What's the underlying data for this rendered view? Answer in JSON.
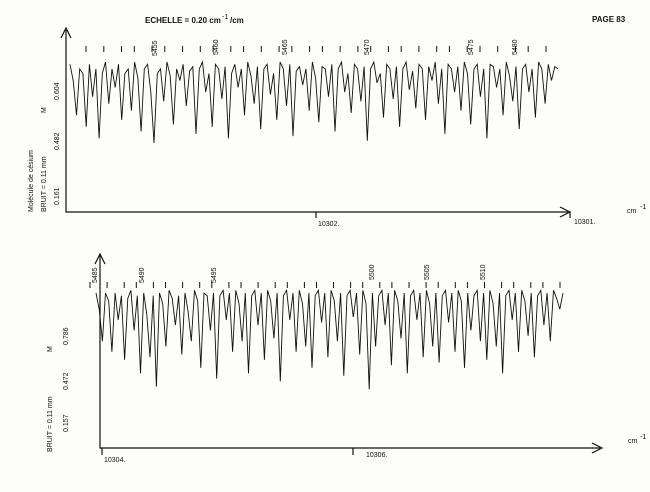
{
  "header": {
    "scale_label": "ECHELLE = 0.20 cm",
    "scale_exp": "-1",
    "scale_unit": "/cm",
    "page_label": "PAGE 83"
  },
  "colors": {
    "ink": "#111111",
    "paper": "#fdfdfb"
  },
  "chart_data": [
    {
      "type": "line",
      "xunit": "cm",
      "xunit_exp": "-1",
      "molecule_label": "Molécule de césium",
      "noise_label": "BRUIT = 0.11 mm",
      "scale_marker": "M",
      "yticks": [
        "0.604",
        "0.482",
        "0.161"
      ],
      "xticks": [
        "10302.",
        "10301."
      ],
      "line_numbers": [
        "5455",
        "5460",
        "5465",
        "5470",
        "5475",
        "5480"
      ],
      "marker_count": 30,
      "series": [
        {
          "values": [
            0.62,
            0.55,
            0.4,
            0.6,
            0.58,
            0.35,
            0.62,
            0.48,
            0.6,
            0.3,
            0.58,
            0.63,
            0.45,
            0.6,
            0.52,
            0.62,
            0.38,
            0.58,
            0.6,
            0.42,
            0.63,
            0.56,
            0.33,
            0.6,
            0.62,
            0.5,
            0.28,
            0.58,
            0.6,
            0.46,
            0.63,
            0.57,
            0.36,
            0.6,
            0.55,
            0.62,
            0.44,
            0.59,
            0.61,
            0.32,
            0.6,
            0.63,
            0.5,
            0.58,
            0.35,
            0.62,
            0.6,
            0.47,
            0.61,
            0.3,
            0.58,
            0.62,
            0.52,
            0.6,
            0.4,
            0.63,
            0.57,
            0.45,
            0.61,
            0.34,
            0.6,
            0.62,
            0.49,
            0.58,
            0.38,
            0.63,
            0.6,
            0.44,
            0.62,
            0.31,
            0.59,
            0.61,
            0.53,
            0.6,
            0.42,
            0.63,
            0.56,
            0.37,
            0.61,
            0.6,
            0.48,
            0.62,
            0.33,
            0.6,
            0.63,
            0.5,
            0.58,
            0.41,
            0.62,
            0.6,
            0.46,
            0.61,
            0.29,
            0.6,
            0.63,
            0.54,
            0.58,
            0.39,
            0.62,
            0.6,
            0.47,
            0.61,
            0.35,
            0.6,
            0.63,
            0.51,
            0.59,
            0.43,
            0.62,
            0.6,
            0.38,
            0.61,
            0.55,
            0.63,
            0.45,
            0.6,
            0.32,
            0.62,
            0.6,
            0.5,
            0.61,
            0.42,
            0.63,
            0.58,
            0.36,
            0.6,
            0.62,
            0.48,
            0.6,
            0.3,
            0.62,
            0.61,
            0.52,
            0.6,
            0.4,
            0.63,
            0.57,
            0.46,
            0.61,
            0.34,
            0.6,
            0.62,
            0.5,
            0.6,
            0.39,
            0.63,
            0.6,
            0.45,
            0.62,
            0.55,
            0.61,
            0.6
          ]
        }
      ]
    },
    {
      "type": "line",
      "xunit": "cm",
      "xunit_exp": "-1",
      "noise_label": "BRUIT = 0.11 mm",
      "scale_marker": "M",
      "yticks": [
        "0.786",
        "0.472",
        "0.157"
      ],
      "xticks": [
        "10304.",
        "10306."
      ],
      "line_numbers": [
        "5485",
        "5490",
        "5495",
        "5500",
        "5505",
        "5510"
      ],
      "marker_count": 32,
      "series": [
        {
          "values": [
            0.8,
            0.74,
            0.62,
            0.8,
            0.77,
            0.58,
            0.8,
            0.7,
            0.79,
            0.55,
            0.78,
            0.81,
            0.66,
            0.79,
            0.5,
            0.8,
            0.72,
            0.56,
            0.79,
            0.45,
            0.8,
            0.76,
            0.6,
            0.81,
            0.78,
            0.68,
            0.79,
            0.57,
            0.8,
            0.73,
            0.62,
            0.81,
            0.77,
            0.52,
            0.8,
            0.79,
            0.66,
            0.8,
            0.48,
            0.79,
            0.81,
            0.7,
            0.8,
            0.58,
            0.81,
            0.76,
            0.62,
            0.8,
            0.5,
            0.79,
            0.81,
            0.68,
            0.8,
            0.55,
            0.81,
            0.77,
            0.63,
            0.8,
            0.47,
            0.79,
            0.81,
            0.7,
            0.8,
            0.58,
            0.81,
            0.76,
            0.6,
            0.8,
            0.52,
            0.79,
            0.81,
            0.69,
            0.8,
            0.56,
            0.81,
            0.77,
            0.62,
            0.8,
            0.49,
            0.79,
            0.81,
            0.71,
            0.8,
            0.57,
            0.81,
            0.76,
            0.44,
            0.8,
            0.6,
            0.79,
            0.81,
            0.68,
            0.8,
            0.53,
            0.81,
            0.77,
            0.63,
            0.8,
            0.5,
            0.79,
            0.81,
            0.7,
            0.8,
            0.56,
            0.81,
            0.76,
            0.6,
            0.8,
            0.54,
            0.79,
            0.81,
            0.69,
            0.8,
            0.58,
            0.81,
            0.77,
            0.52,
            0.8,
            0.66,
            0.79,
            0.81,
            0.62,
            0.8,
            0.55,
            0.81,
            0.76,
            0.6,
            0.8,
            0.5,
            0.79,
            0.81,
            0.7,
            0.8,
            0.58,
            0.81,
            0.77,
            0.64,
            0.8,
            0.56,
            0.79,
            0.81,
            0.68,
            0.8,
            0.62,
            0.81,
            0.78,
            0.74,
            0.8
          ]
        }
      ]
    }
  ]
}
